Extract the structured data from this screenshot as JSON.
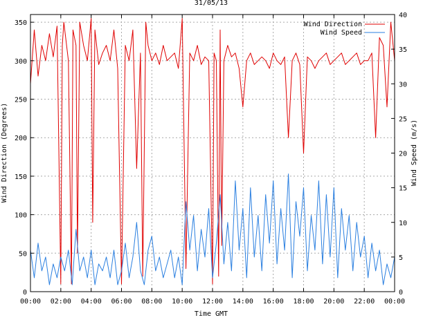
{
  "chart_data": {
    "type": "line",
    "title": "31/05/13",
    "xlabel": "Time GMT",
    "ylabel_left": "Wind Direction (Degrees)",
    "ylabel_right": "Wind Speed (m/s)",
    "xlim_hours": [
      0,
      24
    ],
    "x_ticks": [
      {
        "h": 0,
        "label": "00:00"
      },
      {
        "h": 2,
        "label": "02:00"
      },
      {
        "h": 4,
        "label": "04:00"
      },
      {
        "h": 6,
        "label": "06:00"
      },
      {
        "h": 8,
        "label": "08:00"
      },
      {
        "h": 10,
        "label": "10:00"
      },
      {
        "h": 12,
        "label": "12:00"
      },
      {
        "h": 14,
        "label": "14:00"
      },
      {
        "h": 16,
        "label": "16:00"
      },
      {
        "h": 18,
        "label": "18:00"
      },
      {
        "h": 20,
        "label": "20:00"
      },
      {
        "h": 22,
        "label": "22:00"
      },
      {
        "h": 24,
        "label": "00:00"
      }
    ],
    "ylim_left": [
      0,
      360
    ],
    "left_ticks": [
      0,
      50,
      100,
      150,
      200,
      250,
      300,
      350
    ],
    "ylim_right": [
      0,
      40
    ],
    "right_ticks": [
      0,
      5,
      10,
      15,
      20,
      25,
      30,
      35,
      40
    ],
    "grid": true,
    "legend_placement": "top-right",
    "series": [
      {
        "name": "Wind Direction",
        "axis": "left",
        "color": "#e00000",
        "x_hours": [
          0,
          0.25,
          0.5,
          0.75,
          1,
          1.25,
          1.5,
          1.75,
          2,
          2.1,
          2.2,
          2.5,
          2.7,
          2.8,
          3,
          3.1,
          3.25,
          3.5,
          3.75,
          4,
          4.1,
          4.25,
          4.5,
          4.75,
          5,
          5.25,
          5.5,
          5.75,
          6,
          6.25,
          6.5,
          6.75,
          7,
          7.25,
          7.4,
          7.6,
          7.75,
          8,
          8.25,
          8.5,
          8.75,
          9,
          9.25,
          9.5,
          9.75,
          10,
          10.25,
          10.5,
          10.75,
          11,
          11.25,
          11.5,
          11.75,
          12,
          12.1,
          12.25,
          12.4,
          12.5,
          12.6,
          12.75,
          13,
          13.25,
          13.5,
          13.75,
          14,
          14.25,
          14.5,
          14.75,
          15,
          15.25,
          15.5,
          15.75,
          16,
          16.25,
          16.5,
          16.75,
          17,
          17.25,
          17.5,
          17.75,
          18,
          18.25,
          18.5,
          18.75,
          19,
          19.25,
          19.5,
          19.75,
          20,
          20.25,
          20.5,
          20.75,
          21,
          21.25,
          21.5,
          21.75,
          22,
          22.25,
          22.5,
          22.75,
          23,
          23.25,
          23.5,
          23.75,
          24
        ],
        "values": [
          270,
          340,
          280,
          320,
          300,
          335,
          305,
          345,
          10,
          320,
          350,
          300,
          10,
          340,
          320,
          50,
          350,
          320,
          300,
          355,
          90,
          340,
          295,
          310,
          320,
          300,
          340,
          290,
          10,
          320,
          300,
          340,
          160,
          310,
          20,
          350,
          320,
          300,
          310,
          295,
          320,
          300,
          305,
          310,
          290,
          355,
          30,
          310,
          300,
          320,
          295,
          305,
          300,
          10,
          310,
          300,
          20,
          340,
          60,
          300,
          320,
          305,
          310,
          290,
          240,
          300,
          310,
          295,
          300,
          305,
          300,
          290,
          310,
          300,
          295,
          305,
          200,
          300,
          310,
          295,
          180,
          305,
          300,
          290,
          300,
          305,
          310,
          295,
          300,
          305,
          310,
          295,
          300,
          305,
          310,
          295,
          300,
          300,
          310,
          200,
          330,
          320,
          240,
          350,
          300
        ]
      },
      {
        "name": "Wind Speed",
        "axis": "right",
        "color": "#2a7fe0",
        "x_hours": [
          0,
          0.25,
          0.5,
          0.75,
          1,
          1.25,
          1.5,
          1.75,
          2,
          2.25,
          2.5,
          2.75,
          3,
          3.25,
          3.5,
          3.75,
          4,
          4.25,
          4.5,
          4.75,
          5,
          5.25,
          5.5,
          5.75,
          6,
          6.25,
          6.5,
          6.75,
          7,
          7.25,
          7.5,
          7.75,
          8,
          8.25,
          8.5,
          8.75,
          9,
          9.25,
          9.5,
          9.75,
          10,
          10.25,
          10.5,
          10.75,
          11,
          11.25,
          11.5,
          11.75,
          12,
          12.25,
          12.5,
          12.75,
          13,
          13.25,
          13.5,
          13.75,
          14,
          14.25,
          14.5,
          14.75,
          15,
          15.25,
          15.5,
          15.75,
          16,
          16.25,
          16.5,
          16.75,
          17,
          17.25,
          17.5,
          17.75,
          18,
          18.25,
          18.5,
          18.75,
          19,
          19.25,
          19.5,
          19.75,
          20,
          20.25,
          20.5,
          20.75,
          21,
          21.25,
          21.5,
          21.75,
          22,
          22.25,
          22.5,
          22.75,
          23,
          23.25,
          23.5,
          23.75,
          24
        ],
        "values": [
          6,
          2,
          7,
          3,
          5,
          1,
          4,
          2,
          5,
          3,
          6,
          1,
          9,
          3,
          5,
          2,
          6,
          1,
          4,
          3,
          5,
          2,
          6,
          1,
          3,
          7,
          2,
          5,
          10,
          3,
          1,
          6,
          8,
          3,
          5,
          2,
          4,
          6,
          2,
          5,
          1,
          13,
          6,
          11,
          3,
          9,
          5,
          12,
          2,
          7,
          14,
          4,
          10,
          3,
          16,
          6,
          12,
          2,
          15,
          5,
          11,
          3,
          14,
          7,
          16,
          4,
          12,
          6,
          17,
          2,
          13,
          8,
          15,
          3,
          11,
          6,
          16,
          4,
          14,
          5,
          15,
          2,
          12,
          6,
          11,
          3,
          10,
          5,
          8,
          2,
          7,
          3,
          6,
          1,
          4,
          2,
          5
        ]
      }
    ]
  }
}
